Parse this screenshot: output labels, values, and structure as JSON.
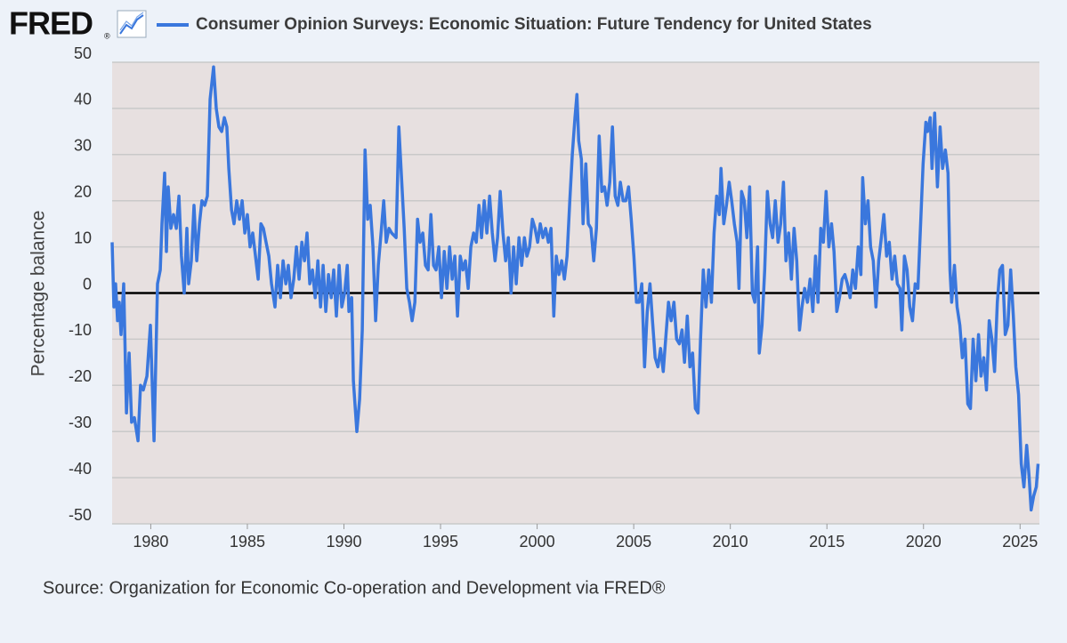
{
  "chart_data": {
    "type": "line",
    "logo": "FRED",
    "logo_mark": "®",
    "title": "Consumer Opinion Surveys: Economic Situation: Future Tendency for United States",
    "y_label": "Percentage balance",
    "source": "Source: Organization for Economic Co-operation and Development via FRED®",
    "xlim": [
      1978,
      2026
    ],
    "xticks": [
      1980,
      1985,
      1990,
      1995,
      2000,
      2005,
      2010,
      2015,
      2020,
      2025
    ],
    "ylim": [
      -50,
      50
    ],
    "yticks": [
      -50,
      -40,
      -30,
      -20,
      -10,
      0,
      10,
      20,
      30,
      40,
      50
    ],
    "zero_line": 0,
    "grid": true,
    "x": [
      1978.0,
      1978.09,
      1978.18,
      1978.28,
      1978.37,
      1978.46,
      1978.6,
      1978.74,
      1978.88,
      1979.01,
      1979.15,
      1979.34,
      1979.47,
      1979.61,
      1979.8,
      1979.98,
      1980.17,
      1980.35,
      1980.49,
      1980.58,
      1980.72,
      1980.81,
      1980.9,
      1981.04,
      1981.18,
      1981.32,
      1981.46,
      1981.59,
      1981.73,
      1981.87,
      1981.96,
      1982.1,
      1982.24,
      1982.38,
      1982.52,
      1982.65,
      1982.79,
      1982.93,
      1983.07,
      1983.25,
      1983.39,
      1983.53,
      1983.67,
      1983.81,
      1983.94,
      1984.04,
      1984.18,
      1984.31,
      1984.45,
      1984.59,
      1984.73,
      1984.87,
      1985.0,
      1985.14,
      1985.28,
      1985.42,
      1985.56,
      1985.7,
      1985.83,
      1985.97,
      1986.11,
      1986.25,
      1986.43,
      1986.57,
      1986.71,
      1986.85,
      1986.99,
      1987.12,
      1987.26,
      1987.4,
      1987.54,
      1987.68,
      1987.82,
      1987.96,
      1988.09,
      1988.23,
      1988.37,
      1988.51,
      1988.65,
      1988.79,
      1988.92,
      1989.06,
      1989.2,
      1989.34,
      1989.47,
      1989.61,
      1989.75,
      1989.89,
      1990.03,
      1990.17,
      1990.26,
      1990.4,
      1990.49,
      1990.67,
      1990.81,
      1990.95,
      1991.09,
      1991.23,
      1991.36,
      1991.5,
      1991.64,
      1991.78,
      1991.92,
      1992.06,
      1992.19,
      1992.33,
      1992.47,
      1992.7,
      1992.84,
      1992.98,
      1993.12,
      1993.25,
      1993.39,
      1993.53,
      1993.67,
      1993.81,
      1993.94,
      1994.08,
      1994.22,
      1994.36,
      1994.5,
      1994.64,
      1994.77,
      1994.91,
      1995.05,
      1995.19,
      1995.33,
      1995.47,
      1995.6,
      1995.74,
      1995.88,
      1996.02,
      1996.16,
      1996.29,
      1996.43,
      1996.57,
      1996.71,
      1996.85,
      1996.99,
      1997.12,
      1997.26,
      1997.4,
      1997.54,
      1997.68,
      1997.82,
      1997.95,
      1998.09,
      1998.23,
      1998.37,
      1998.51,
      1998.65,
      1998.78,
      1998.92,
      1999.06,
      1999.2,
      1999.34,
      1999.47,
      1999.61,
      1999.75,
      1999.89,
      2000.03,
      2000.16,
      2000.3,
      2000.44,
      2000.58,
      2000.72,
      2000.86,
      2000.99,
      2001.13,
      2001.27,
      2001.41,
      2001.55,
      2001.69,
      2001.82,
      2001.96,
      2002.06,
      2002.15,
      2002.29,
      2002.38,
      2002.52,
      2002.65,
      2002.79,
      2002.93,
      2003.07,
      2003.21,
      2003.35,
      2003.49,
      2003.62,
      2003.76,
      2003.9,
      2004.04,
      2004.18,
      2004.31,
      2004.45,
      2004.59,
      2004.73,
      2004.87,
      2005.01,
      2005.14,
      2005.28,
      2005.42,
      2005.56,
      2005.7,
      2005.84,
      2005.97,
      2006.11,
      2006.25,
      2006.39,
      2006.53,
      2006.67,
      2006.8,
      2006.94,
      2007.08,
      2007.22,
      2007.36,
      2007.5,
      2007.63,
      2007.77,
      2007.91,
      2008.05,
      2008.19,
      2008.33,
      2008.46,
      2008.6,
      2008.74,
      2008.88,
      2009.02,
      2009.16,
      2009.29,
      2009.43,
      2009.52,
      2009.66,
      2009.8,
      2009.94,
      2010.07,
      2010.21,
      2010.35,
      2010.45,
      2010.58,
      2010.72,
      2010.86,
      2011.0,
      2011.14,
      2011.27,
      2011.41,
      2011.5,
      2011.64,
      2011.78,
      2011.92,
      2012.06,
      2012.19,
      2012.33,
      2012.47,
      2012.61,
      2012.75,
      2012.88,
      2013.02,
      2013.16,
      2013.3,
      2013.44,
      2013.58,
      2013.71,
      2013.85,
      2013.99,
      2014.13,
      2014.27,
      2014.41,
      2014.54,
      2014.68,
      2014.82,
      2014.96,
      2015.1,
      2015.24,
      2015.37,
      2015.51,
      2015.65,
      2015.79,
      2015.93,
      2016.06,
      2016.2,
      2016.34,
      2016.48,
      2016.62,
      2016.76,
      2016.85,
      2016.99,
      2017.13,
      2017.26,
      2017.4,
      2017.54,
      2017.68,
      2017.82,
      2017.95,
      2018.09,
      2018.23,
      2018.37,
      2018.51,
      2018.65,
      2018.78,
      2018.88,
      2019.01,
      2019.15,
      2019.29,
      2019.43,
      2019.57,
      2019.71,
      2019.84,
      2019.98,
      2020.12,
      2020.21,
      2020.35,
      2020.44,
      2020.58,
      2020.72,
      2020.86,
      2020.99,
      2021.13,
      2021.27,
      2021.37,
      2021.46,
      2021.6,
      2021.74,
      2021.88,
      2022.01,
      2022.15,
      2022.29,
      2022.43,
      2022.57,
      2022.71,
      2022.85,
      2022.98,
      2023.12,
      2023.26,
      2023.4,
      2023.54,
      2023.68,
      2023.82,
      2023.95,
      2024.09,
      2024.23,
      2024.37,
      2024.51,
      2024.65,
      2024.78,
      2024.92,
      2025.06,
      2025.2,
      2025.34,
      2025.47,
      2025.57,
      2025.7,
      2025.84,
      2025.93
    ],
    "series": [
      {
        "name": "Consumer Opinion Surveys: Economic Situation: Future Tendency for United States",
        "color": "#3a77dd",
        "values": [
          11,
          -3,
          2,
          -6,
          -2,
          -9,
          2,
          -26,
          -13,
          -28,
          -27,
          -32,
          -20,
          -21,
          -18,
          -7,
          -32,
          2,
          5,
          15,
          26,
          9,
          23,
          14,
          17,
          14,
          21,
          8,
          0,
          14,
          2,
          7,
          19,
          7,
          15,
          20,
          19,
          21,
          42,
          49,
          40,
          36,
          35,
          38,
          36,
          27,
          18,
          15,
          20,
          16,
          20,
          13,
          17,
          10,
          13,
          8,
          3,
          15,
          14,
          11,
          8,
          2,
          -3,
          6,
          -1,
          7,
          2,
          6,
          -1,
          3,
          10,
          3,
          11,
          7,
          13,
          2,
          5,
          -1,
          7,
          -3,
          6,
          -4,
          4,
          -1,
          5,
          -5,
          6,
          -3,
          0,
          6,
          -4,
          -1,
          -19,
          -30,
          -23,
          -8,
          31,
          16,
          19,
          10,
          -6,
          6,
          13,
          20,
          11,
          14,
          13,
          12,
          36,
          25,
          14,
          1,
          -2,
          -6,
          -2,
          16,
          11,
          13,
          6,
          5,
          17,
          6,
          5,
          10,
          -1,
          9,
          1,
          10,
          3,
          8,
          -5,
          8,
          5,
          7,
          1,
          10,
          13,
          11,
          19,
          12,
          20,
          13,
          21,
          13,
          7,
          12,
          22,
          13,
          7,
          12,
          0,
          10,
          2,
          12,
          6,
          12,
          8,
          10,
          16,
          14,
          11,
          15,
          12,
          14,
          11,
          14,
          -5,
          8,
          4,
          7,
          3,
          8,
          20,
          30,
          38,
          43,
          33,
          29,
          15,
          28,
          15,
          14,
          7,
          14,
          34,
          22,
          23,
          19,
          24,
          36,
          21,
          19,
          24,
          20,
          20,
          23,
          16,
          8,
          -2,
          -2,
          2,
          -16,
          -4,
          2,
          -6,
          -14,
          -16,
          -12,
          -17,
          -9,
          -2,
          -6,
          -2,
          -10,
          -11,
          -8,
          -15,
          -5,
          -16,
          -13,
          -25,
          -26,
          -10,
          5,
          -3,
          5,
          -2,
          13,
          21,
          17,
          27,
          15,
          19,
          24,
          20,
          15,
          11,
          1,
          22,
          20,
          12,
          23,
          0,
          -2,
          10,
          -13,
          -7,
          5,
          22,
          15,
          12,
          20,
          11,
          15,
          24,
          7,
          13,
          3,
          14,
          7,
          -8,
          -3,
          1,
          -2,
          3,
          -4,
          8,
          -2,
          14,
          11,
          22,
          10,
          15,
          9,
          -4,
          -1,
          3,
          4,
          2,
          -1,
          5,
          1,
          10,
          4,
          25,
          15,
          20,
          10,
          7,
          -3,
          7,
          12,
          17,
          8,
          11,
          3,
          8,
          2,
          1,
          -8,
          8,
          5,
          -3,
          -6,
          2,
          1,
          14,
          28,
          37,
          35,
          38,
          27,
          39,
          23,
          36,
          27,
          31,
          26,
          5,
          -2,
          6,
          -3,
          -7,
          -14,
          -10,
          -24,
          -25,
          -10,
          -19,
          -9,
          -18,
          -14,
          -21,
          -6,
          -10,
          -17,
          -2,
          5,
          6,
          -9,
          -7,
          5,
          -5,
          -16,
          -22,
          -37,
          -42,
          -33,
          -40,
          -47,
          -44,
          -42,
          -37
        ]
      }
    ]
  }
}
